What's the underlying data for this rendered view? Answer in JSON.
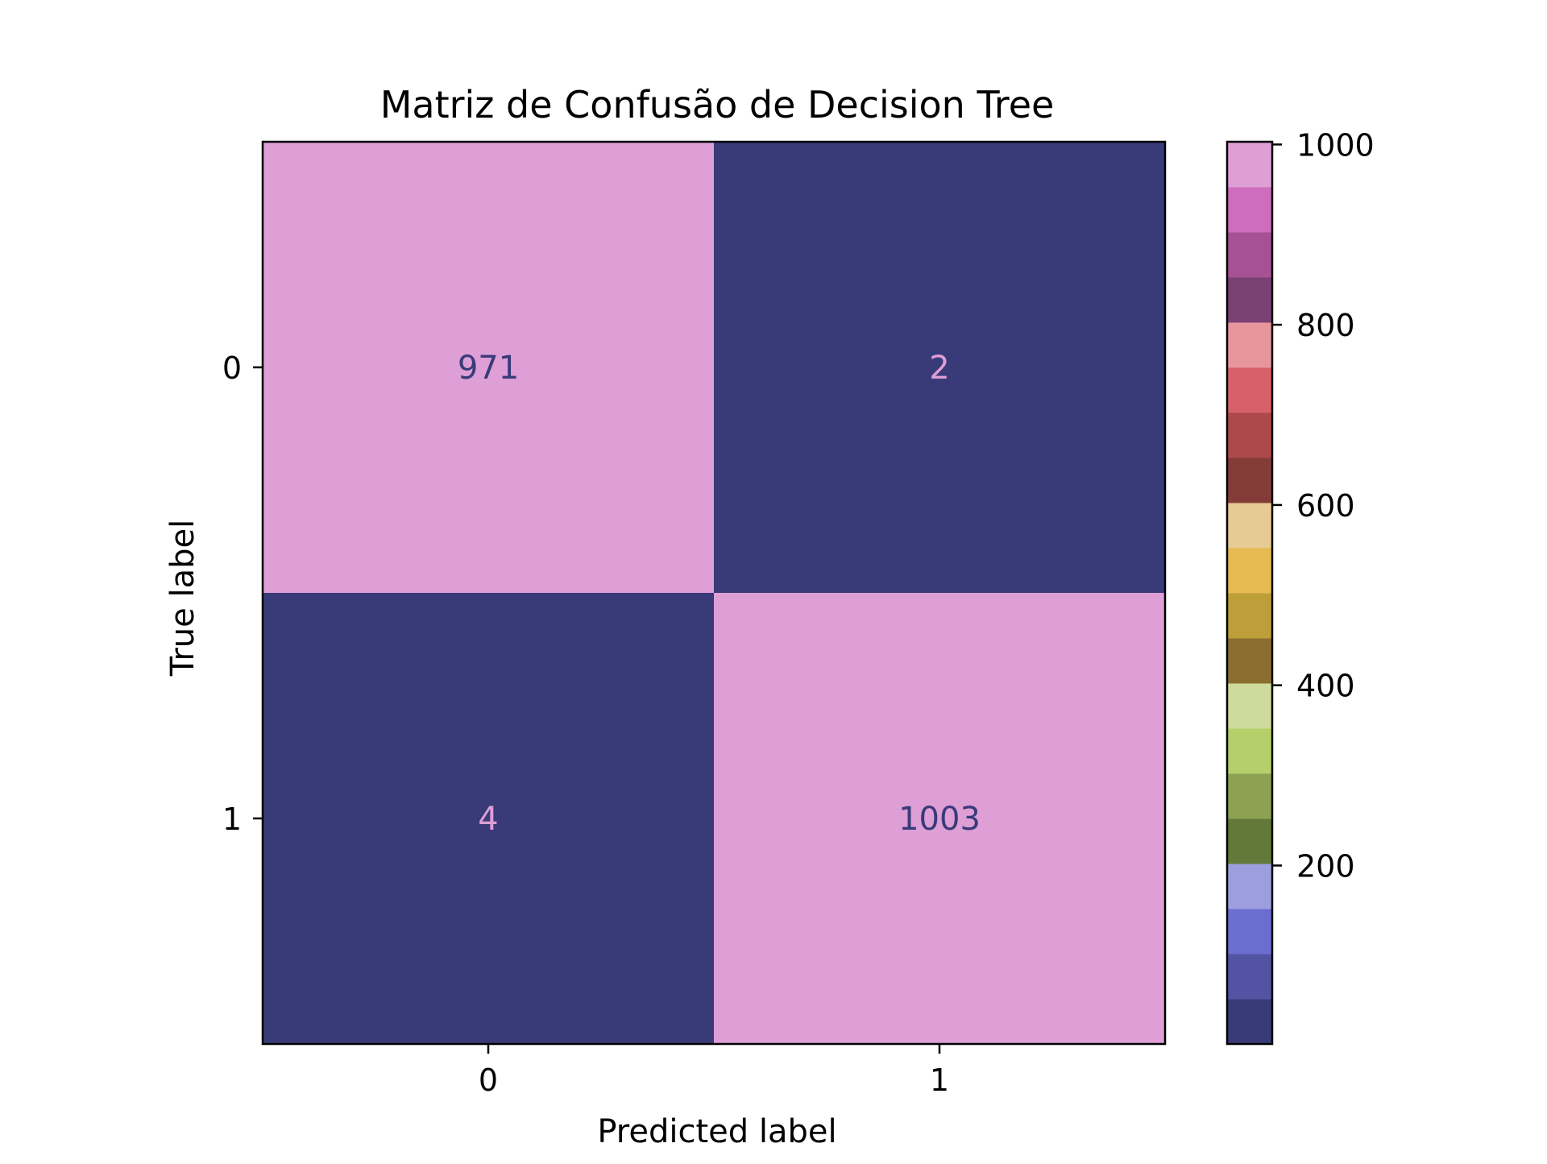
{
  "chart_data": {
    "type": "heatmap",
    "title": "Matriz de Confusão de Decision Tree",
    "xlabel": "Predicted label",
    "ylabel": "True label",
    "x_categories": [
      "0",
      "1"
    ],
    "y_categories": [
      "0",
      "1"
    ],
    "matrix": [
      [
        971,
        2
      ],
      [
        4,
        1003
      ]
    ],
    "colorbar": {
      "range": [
        2,
        1003
      ],
      "ticks": [
        200,
        400,
        600,
        800,
        1000
      ],
      "tick_labels": [
        "200",
        "400",
        "600",
        "800",
        "1000"
      ],
      "colormap": "tab20b (discrete, 20 bands)",
      "colors": [
        "#393b79",
        "#5254a3",
        "#6b6ecf",
        "#9c9ede",
        "#637939",
        "#8ca252",
        "#b5cf6b",
        "#cedb9c",
        "#8c6d31",
        "#bd9e39",
        "#e7ba52",
        "#e7cb94",
        "#843c39",
        "#ad494a",
        "#d6616b",
        "#e7969c",
        "#7b4173",
        "#a55194",
        "#ce6dbd",
        "#de9ed6"
      ]
    },
    "grid": false,
    "text_color_low": "#de9ed6",
    "text_color_high": "#393b79"
  }
}
